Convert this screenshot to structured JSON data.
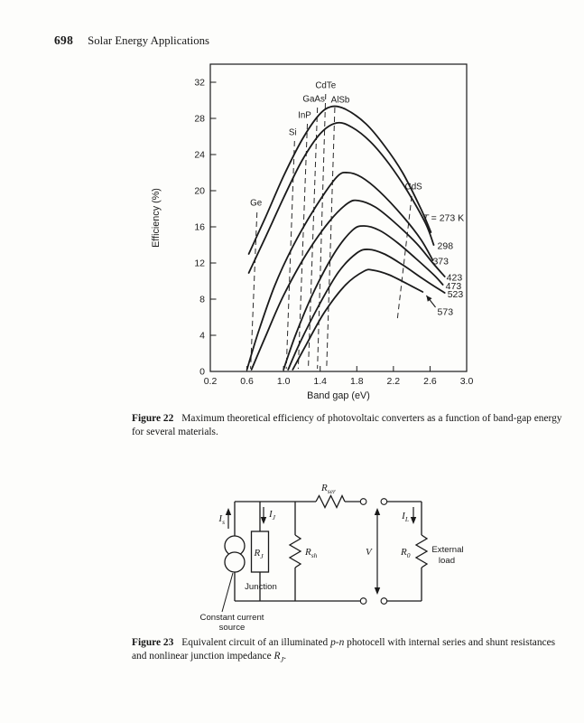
{
  "page": {
    "number": "698",
    "running_title": "Solar Energy Applications"
  },
  "chart_data": {
    "type": "line",
    "title": "",
    "xlabel": "Band gap (eV)",
    "ylabel": "Efficiency (%)",
    "xlim": [
      0.2,
      3.0
    ],
    "ylim": [
      0,
      34
    ],
    "xticks": [
      0.2,
      0.6,
      1.0,
      1.4,
      1.8,
      2.2,
      2.6,
      3.0
    ],
    "yticks": [
      0,
      4,
      8,
      12,
      16,
      20,
      24,
      28,
      32
    ],
    "grid": false,
    "legend_position": "right-edge-labels",
    "series": [
      {
        "name": "273 K",
        "label": "T = 273 K",
        "label_rich": [
          [
            "T",
            true
          ],
          [
            " = 273 K",
            false
          ]
        ],
        "label_at": [
          2.52,
          17.0
        ],
        "points": [
          [
            0.62,
            13.0
          ],
          [
            0.8,
            17.0
          ],
          [
            1.0,
            21.6
          ],
          [
            1.2,
            25.6
          ],
          [
            1.38,
            28.3
          ],
          [
            1.52,
            29.3
          ],
          [
            1.68,
            29.0
          ],
          [
            1.9,
            27.4
          ],
          [
            2.1,
            25.0
          ],
          [
            2.3,
            22.0
          ],
          [
            2.5,
            18.0
          ],
          [
            2.61,
            15.4
          ]
        ]
      },
      {
        "name": "298 K",
        "label": "298",
        "label_at": [
          2.68,
          13.9
        ],
        "points": [
          [
            0.62,
            10.9
          ],
          [
            0.8,
            14.8
          ],
          [
            1.0,
            19.2
          ],
          [
            1.2,
            23.3
          ],
          [
            1.4,
            26.3
          ],
          [
            1.58,
            27.5
          ],
          [
            1.75,
            27.0
          ],
          [
            1.95,
            25.4
          ],
          [
            2.15,
            23.0
          ],
          [
            2.35,
            20.0
          ],
          [
            2.55,
            16.4
          ],
          [
            2.64,
            14.0
          ]
        ]
      },
      {
        "name": "373 K",
        "label": "373",
        "label_at": [
          2.63,
          12.2
        ],
        "points": [
          [
            0.6,
            0.2
          ],
          [
            0.72,
            4.2
          ],
          [
            0.9,
            9.4
          ],
          [
            1.1,
            13.8
          ],
          [
            1.35,
            18.2
          ],
          [
            1.58,
            21.5
          ],
          [
            1.7,
            22.0
          ],
          [
            1.85,
            21.5
          ],
          [
            2.05,
            19.9
          ],
          [
            2.3,
            17.2
          ],
          [
            2.5,
            14.6
          ],
          [
            2.63,
            12.3
          ]
        ]
      },
      {
        "name": "423 K",
        "label": "423",
        "label_at": [
          2.78,
          10.4
        ],
        "points": [
          [
            0.65,
            0.2
          ],
          [
            0.8,
            3.8
          ],
          [
            1.0,
            8.4
          ],
          [
            1.25,
            13.0
          ],
          [
            1.5,
            16.6
          ],
          [
            1.7,
            18.6
          ],
          [
            1.82,
            18.9
          ],
          [
            2.0,
            18.2
          ],
          [
            2.2,
            16.6
          ],
          [
            2.45,
            14.2
          ],
          [
            2.63,
            12.0
          ],
          [
            2.76,
            10.5
          ]
        ]
      },
      {
        "name": "473 K",
        "label": "473",
        "label_at": [
          2.77,
          9.45
        ],
        "points": [
          [
            1.0,
            0.2
          ],
          [
            1.13,
            4.0
          ],
          [
            1.32,
            8.6
          ],
          [
            1.55,
            13.0
          ],
          [
            1.75,
            15.6
          ],
          [
            1.88,
            16.1
          ],
          [
            2.05,
            15.6
          ],
          [
            2.25,
            14.2
          ],
          [
            2.5,
            12.0
          ],
          [
            2.65,
            10.6
          ],
          [
            2.74,
            9.6
          ]
        ]
      },
      {
        "name": "523 K",
        "label": "523",
        "label_at": [
          2.79,
          8.55
        ],
        "points": [
          [
            1.05,
            0.2
          ],
          [
            1.18,
            3.2
          ],
          [
            1.38,
            7.2
          ],
          [
            1.6,
            11.0
          ],
          [
            1.8,
            13.1
          ],
          [
            1.93,
            13.5
          ],
          [
            2.1,
            13.0
          ],
          [
            2.3,
            11.8
          ],
          [
            2.5,
            10.4
          ],
          [
            2.65,
            9.4
          ],
          [
            2.76,
            8.7
          ]
        ]
      },
      {
        "name": "573 K",
        "label": "573",
        "label_at": [
          2.68,
          6.6
        ],
        "arrow": {
          "from": [
            2.66,
            7.1
          ],
          "to": [
            2.56,
            8.4
          ]
        },
        "points": [
          [
            1.1,
            0.2
          ],
          [
            1.25,
            3.0
          ],
          [
            1.45,
            6.6
          ],
          [
            1.68,
            9.6
          ],
          [
            1.88,
            11.1
          ],
          [
            1.98,
            11.2
          ],
          [
            2.15,
            10.7
          ],
          [
            2.35,
            9.7
          ],
          [
            2.52,
            8.8
          ]
        ]
      }
    ],
    "materials": [
      {
        "name": "Ge",
        "label_at": [
          0.7,
          18.7
        ],
        "line": [
          [
            0.71,
            17.6
          ],
          [
            0.64,
            0.3
          ]
        ]
      },
      {
        "name": "Si",
        "label_at": [
          1.1,
          26.5
        ],
        "line": [
          [
            1.12,
            25.5
          ],
          [
            1.03,
            0.3
          ]
        ]
      },
      {
        "name": "InP",
        "label_at": [
          1.23,
          28.4
        ],
        "line": [
          [
            1.26,
            27.4
          ],
          [
            1.16,
            0.3
          ]
        ]
      },
      {
        "name": "GaAs",
        "label_at": [
          1.33,
          30.2
        ],
        "line": [
          [
            1.37,
            29.2
          ],
          [
            1.27,
            0.3
          ]
        ]
      },
      {
        "name": "CdTe",
        "label_at": [
          1.46,
          31.7
        ],
        "line": [
          [
            1.46,
            30.7
          ],
          [
            1.37,
            0.3
          ]
        ]
      },
      {
        "name": "AlSb",
        "label_at": [
          1.62,
          30.1
        ],
        "line": [
          [
            1.56,
            29.2
          ],
          [
            1.47,
            0.3
          ]
        ]
      },
      {
        "name": "CdS",
        "label_at": [
          2.42,
          20.5
        ],
        "line": [
          [
            2.4,
            19.4
          ],
          [
            2.24,
            5.5
          ]
        ]
      }
    ]
  },
  "figure22": {
    "caption_label": "Figure 22",
    "caption_text": "Maximum theoretical efficiency of photovoltaic converters as a function of band-gap energy for several materials."
  },
  "figure23": {
    "caption_label": "Figure 23",
    "caption_parts": {
      "t1": "Equivalent circuit of an illuminated ",
      "i1": "p-n",
      "t2": " photocell with internal series and shunt resistances and nonlinear junction impedance ",
      "rbase": "R",
      "rsub": "J",
      "t3": "."
    },
    "labels": {
      "i_s": {
        "base": "I",
        "sub": "s"
      },
      "i_j": {
        "base": "I",
        "sub": "J"
      },
      "i_l": {
        "base": "I",
        "sub": "L"
      },
      "r_j": {
        "base": "R",
        "sub": "J"
      },
      "r_sh": {
        "base": "R",
        "sub": "sh"
      },
      "r_ser": {
        "base": "R",
        "sub": "ser"
      },
      "r_0": {
        "base": "R",
        "sub": "0"
      },
      "v": "V",
      "junction": "Junction",
      "external_load_1": "External",
      "external_load_2": "load",
      "source_label_1": "Constant current",
      "source_label_2": "source"
    }
  }
}
